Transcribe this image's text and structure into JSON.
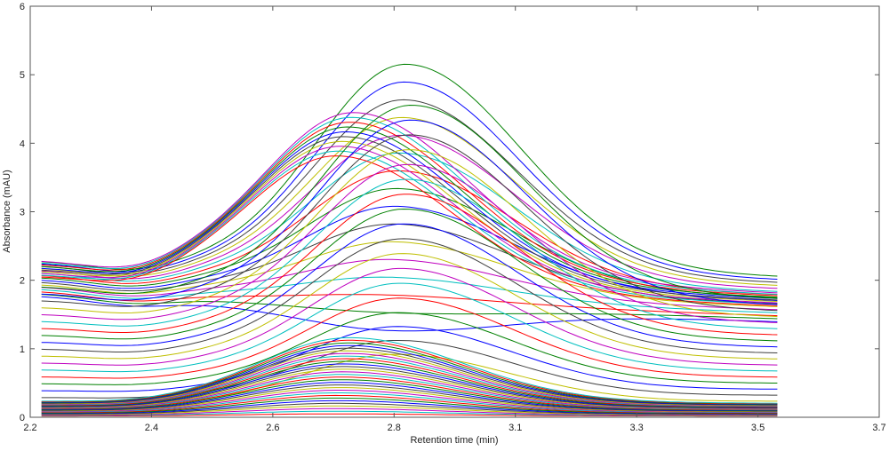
{
  "chart_data": {
    "type": "line",
    "title": "",
    "xlabel": "Retention time (min)",
    "ylabel": "Absorbance (mAU)",
    "xlim": [
      2.2,
      3.7
    ],
    "ylim": [
      0,
      6
    ],
    "x_tick_labels": [
      "2.2",
      "2.4",
      "2.6",
      "2.8",
      "3.1",
      "3.3",
      "3.5",
      "3.7"
    ],
    "y_tick_labels": [
      "0",
      "1",
      "2",
      "3",
      "4",
      "5",
      "6"
    ],
    "grid": false,
    "legend": "none",
    "x_range_of_data": [
      2.22,
      3.52
    ],
    "series_colors": [
      "#0000ff",
      "#008000",
      "#ff0000",
      "#00bfbf",
      "#bf00bf",
      "#bfbf00",
      "#404040"
    ],
    "curve_families": [
      {
        "description": "broad large peaks",
        "peak_x": 2.85,
        "peak_min": 1.1,
        "peak_max": 5.08,
        "count": 16,
        "start_y": [
          1.9,
          2.45
        ],
        "end_y": [
          1.5,
          2.2
        ]
      },
      {
        "description": "earlier peaks",
        "peak_x": 2.76,
        "peak_min": 3.6,
        "peak_max": 4.22,
        "count": 10,
        "start_y": [
          2.2,
          2.45
        ],
        "end_y": [
          1.75,
          1.95
        ]
      },
      {
        "description": "rising baselines",
        "peak_x": 2.86,
        "peak_min": 0.9,
        "peak_max": 4.5,
        "count": 18,
        "start_y": [
          0.2,
          2.05
        ],
        "end_y": [
          0.25,
          1.85
        ]
      },
      {
        "description": "small peaks",
        "peak_x": 2.75,
        "peak_min": 0.05,
        "peak_max": 1.15,
        "count": 30,
        "start_y": [
          0.02,
          0.25
        ],
        "end_y": [
          0.02,
          0.22
        ]
      }
    ]
  }
}
